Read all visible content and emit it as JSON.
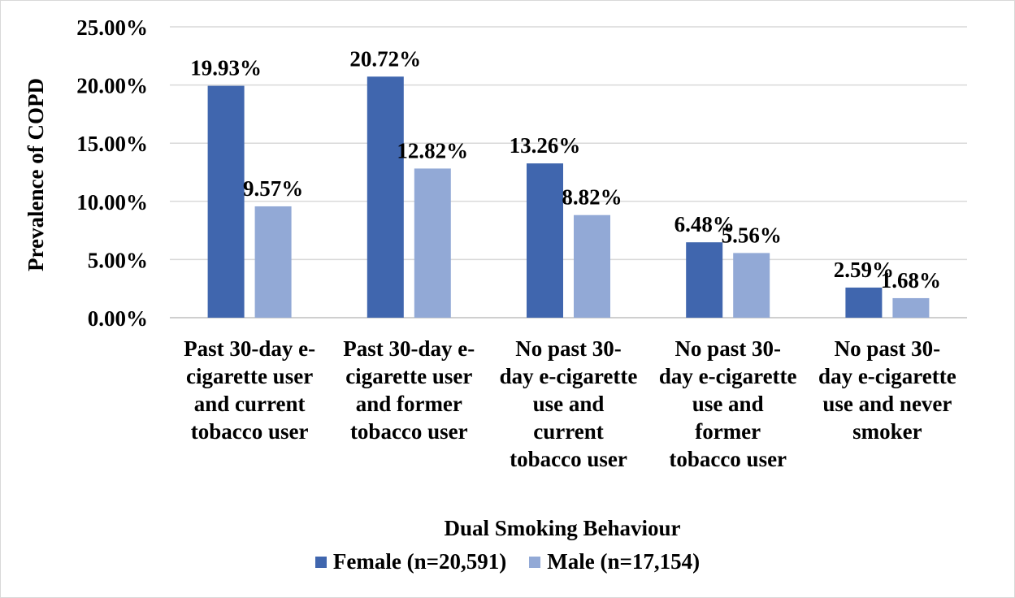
{
  "chart_data": {
    "type": "bar",
    "title": "",
    "xlabel": "Dual Smoking Behaviour",
    "ylabel": "Prevalence of COPD",
    "ylim": [
      0,
      25
    ],
    "y_ticks": [
      "0.00%",
      "5.00%",
      "10.00%",
      "15.00%",
      "20.00%",
      "25.00%"
    ],
    "grid": true,
    "legend_position": "bottom",
    "categories": [
      "Past 30-day e-cigarette user and current tobacco user",
      "Past 30-day e-cigarette user and former tobacco user",
      "No past 30-day e-cigarette use and current tobacco user",
      "No past 30-day e-cigarette use and former tobacco user",
      "No past 30-day e-cigarette use and never smoker"
    ],
    "category_label_lines": [
      [
        "Past 30-day e-",
        "cigarette user",
        "and current",
        "tobacco user"
      ],
      [
        "Past 30-day e-",
        "cigarette user",
        "and former",
        "tobacco user"
      ],
      [
        "No past 30-",
        "day e-cigarette",
        "use and",
        "current",
        "tobacco user"
      ],
      [
        "No past 30-",
        "day e-cigarette",
        "use and",
        "former",
        "tobacco user"
      ],
      [
        "No past 30-",
        "day e-cigarette",
        "use and never",
        "smoker"
      ]
    ],
    "series": [
      {
        "name": "Female (n=20,591)",
        "color": "#4066ae",
        "values": [
          19.93,
          20.72,
          13.26,
          6.48,
          2.59
        ],
        "labels": [
          "19.93%",
          "20.72%",
          "13.26%",
          "6.48%",
          "2.59%"
        ]
      },
      {
        "name": "Male (n=17,154)",
        "color": "#92a9d6",
        "values": [
          9.57,
          12.82,
          8.82,
          5.56,
          1.68
        ],
        "labels": [
          "9.57%",
          "12.82%",
          "8.82%",
          "5.56%",
          "1.68%"
        ]
      }
    ]
  }
}
